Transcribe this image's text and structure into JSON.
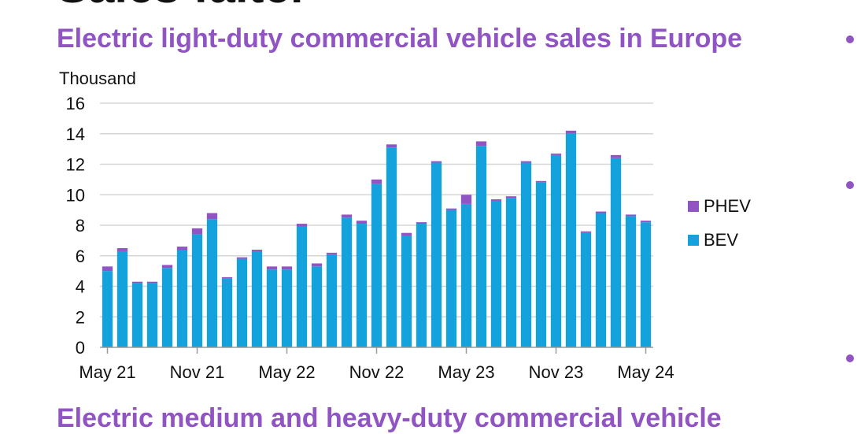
{
  "page": {
    "top_heading_partial": "Sales falter",
    "bottom_heading_partial": "Electric medium and heavy-duty commercial vehicle",
    "colors": {
      "title": "#9155c3",
      "bev": "#13a2dc",
      "phev": "#9155c3",
      "grid": "#d6d6d6"
    }
  },
  "chart_data": {
    "type": "bar",
    "stacked": true,
    "title": "Electric light-duty commercial vehicle sales in Europe",
    "ylabel": "Thousand",
    "xlabel": "",
    "ylim": [
      0,
      16
    ],
    "yticks": [
      0,
      2,
      4,
      6,
      8,
      10,
      12,
      14,
      16
    ],
    "xtick_labels": [
      "May 21",
      "Nov 21",
      "May 22",
      "Nov 22",
      "May 23",
      "Nov 23",
      "May 24"
    ],
    "grid": "horizontal",
    "legend": "right",
    "categories": [
      "May 21",
      "Jun 21",
      "Jul 21",
      "Aug 21",
      "Sep 21",
      "Oct 21",
      "Nov 21",
      "Dec 21",
      "Jan 22",
      "Feb 22",
      "Mar 22",
      "Apr 22",
      "May 22",
      "Jun 22",
      "Jul 22",
      "Aug 22",
      "Sep 22",
      "Oct 22",
      "Nov 22",
      "Dec 22",
      "Jan 23",
      "Feb 23",
      "Mar 23",
      "Apr 23",
      "May 23",
      "Jun 23",
      "Jul 23",
      "Aug 23",
      "Sep 23",
      "Oct 23",
      "Nov 23",
      "Dec 23",
      "Jan 24",
      "Feb 24",
      "Mar 24",
      "Apr 24",
      "May 24"
    ],
    "series": [
      {
        "name": "BEV",
        "color": "#13a2dc",
        "values": [
          5.0,
          6.3,
          4.2,
          4.2,
          5.2,
          6.4,
          7.4,
          8.4,
          4.5,
          5.8,
          6.3,
          5.1,
          5.1,
          7.9,
          5.3,
          6.1,
          8.5,
          8.1,
          10.7,
          13.1,
          7.3,
          8.1,
          12.1,
          9.0,
          9.4,
          13.2,
          9.6,
          9.8,
          12.1,
          10.8,
          12.6,
          14.0,
          7.5,
          8.8,
          12.4,
          8.6,
          8.2
        ]
      },
      {
        "name": "PHEV",
        "color": "#9155c3",
        "values": [
          0.3,
          0.2,
          0.1,
          0.1,
          0.2,
          0.2,
          0.4,
          0.4,
          0.1,
          0.1,
          0.1,
          0.2,
          0.2,
          0.2,
          0.2,
          0.1,
          0.2,
          0.2,
          0.3,
          0.2,
          0.2,
          0.1,
          0.1,
          0.1,
          0.6,
          0.3,
          0.1,
          0.1,
          0.1,
          0.1,
          0.1,
          0.2,
          0.1,
          0.1,
          0.2,
          0.1,
          0.1
        ]
      }
    ]
  }
}
